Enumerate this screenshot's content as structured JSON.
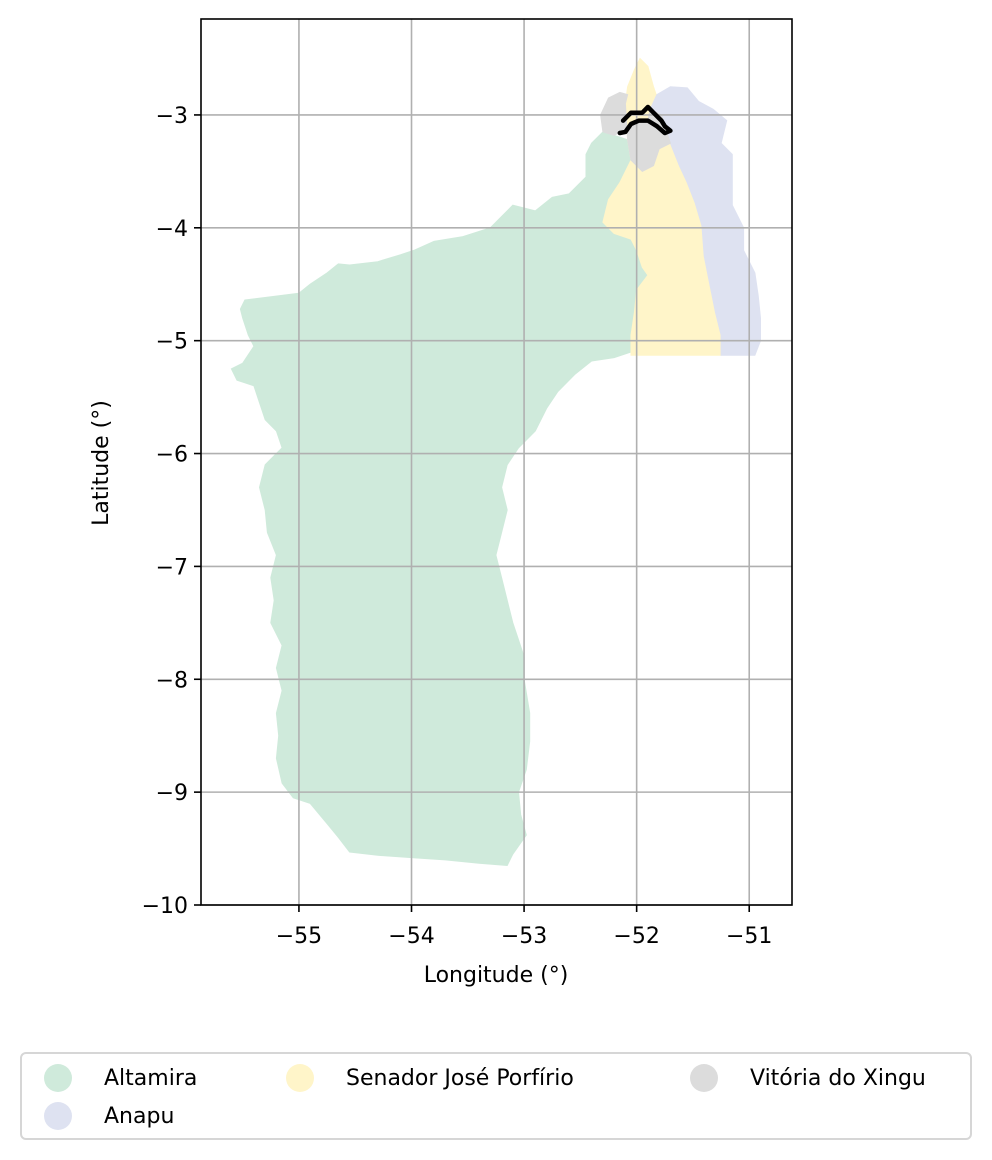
{
  "chart_data": {
    "type": "map",
    "xlabel": "Longitude (°)",
    "ylabel": "Latitude (°)",
    "xlim": [
      -55.87,
      -50.62
    ],
    "ylim": [
      -10.0,
      -2.15
    ],
    "x_ticks": [
      -55,
      -54,
      -53,
      -52,
      -51
    ],
    "x_tick_labels": [
      "−55",
      "−54",
      "−53",
      "−52",
      "−51"
    ],
    "y_ticks": [
      -3,
      -4,
      -5,
      -6,
      -7,
      -8,
      -9,
      -10
    ],
    "y_tick_labels": [
      "−3",
      "−4",
      "−5",
      "−6",
      "−7",
      "−8",
      "−9",
      "−10"
    ],
    "grid": true,
    "legend_position": "bottom",
    "regions": [
      {
        "name": "Altamira",
        "color": "#cfeadb",
        "coords": [
          [
            -55.48,
            -4.64
          ],
          [
            -55.0,
            -4.58
          ],
          [
            -54.9,
            -4.5
          ],
          [
            -54.75,
            -4.4
          ],
          [
            -54.65,
            -4.32
          ],
          [
            -54.55,
            -4.33
          ],
          [
            -54.3,
            -4.3
          ],
          [
            -54.1,
            -4.24
          ],
          [
            -53.98,
            -4.2
          ],
          [
            -53.8,
            -4.12
          ],
          [
            -53.55,
            -4.08
          ],
          [
            -53.3,
            -4.0
          ],
          [
            -53.2,
            -3.9
          ],
          [
            -53.1,
            -3.8
          ],
          [
            -52.9,
            -3.85
          ],
          [
            -52.75,
            -3.73
          ],
          [
            -52.6,
            -3.7
          ],
          [
            -52.45,
            -3.55
          ],
          [
            -52.45,
            -3.35
          ],
          [
            -52.4,
            -3.25
          ],
          [
            -52.3,
            -3.15
          ],
          [
            -52.2,
            -3.18
          ],
          [
            -52.08,
            -3.22
          ],
          [
            -52.05,
            -3.4
          ],
          [
            -52.15,
            -3.6
          ],
          [
            -52.25,
            -3.75
          ],
          [
            -52.3,
            -3.95
          ],
          [
            -52.2,
            -4.05
          ],
          [
            -52.05,
            -4.1
          ],
          [
            -52.0,
            -4.2
          ],
          [
            -51.95,
            -4.35
          ],
          [
            -51.9,
            -4.42
          ],
          [
            -52.0,
            -4.55
          ],
          [
            -52.0,
            -4.75
          ],
          [
            -52.02,
            -4.95
          ],
          [
            -52.05,
            -5.1
          ],
          [
            -52.2,
            -5.15
          ],
          [
            -52.4,
            -5.18
          ],
          [
            -52.55,
            -5.3
          ],
          [
            -52.7,
            -5.45
          ],
          [
            -52.8,
            -5.6
          ],
          [
            -52.9,
            -5.8
          ],
          [
            -53.05,
            -5.95
          ],
          [
            -53.15,
            -6.1
          ],
          [
            -53.2,
            -6.3
          ],
          [
            -53.15,
            -6.5
          ],
          [
            -53.2,
            -6.7
          ],
          [
            -53.25,
            -6.9
          ],
          [
            -53.2,
            -7.1
          ],
          [
            -53.15,
            -7.3
          ],
          [
            -53.1,
            -7.5
          ],
          [
            -53.05,
            -7.65
          ],
          [
            -53.0,
            -7.8
          ],
          [
            -53.0,
            -8.0
          ],
          [
            -52.95,
            -8.3
          ],
          [
            -52.95,
            -8.55
          ],
          [
            -52.98,
            -8.8
          ],
          [
            -53.05,
            -9.0
          ],
          [
            -53.03,
            -9.2
          ],
          [
            -52.98,
            -9.38
          ],
          [
            -53.1,
            -9.55
          ],
          [
            -53.15,
            -9.65
          ],
          [
            -53.4,
            -9.63
          ],
          [
            -53.7,
            -9.6
          ],
          [
            -54.0,
            -9.58
          ],
          [
            -54.3,
            -9.56
          ],
          [
            -54.55,
            -9.53
          ],
          [
            -54.65,
            -9.4
          ],
          [
            -54.75,
            -9.28
          ],
          [
            -54.9,
            -9.1
          ],
          [
            -55.05,
            -9.05
          ],
          [
            -55.15,
            -8.92
          ],
          [
            -55.2,
            -8.7
          ],
          [
            -55.18,
            -8.5
          ],
          [
            -55.2,
            -8.3
          ],
          [
            -55.15,
            -8.1
          ],
          [
            -55.2,
            -7.9
          ],
          [
            -55.15,
            -7.7
          ],
          [
            -55.25,
            -7.5
          ],
          [
            -55.22,
            -7.3
          ],
          [
            -55.25,
            -7.1
          ],
          [
            -55.2,
            -6.9
          ],
          [
            -55.28,
            -6.7
          ],
          [
            -55.3,
            -6.5
          ],
          [
            -55.35,
            -6.3
          ],
          [
            -55.3,
            -6.1
          ],
          [
            -55.2,
            -6.0
          ],
          [
            -55.15,
            -5.95
          ],
          [
            -55.2,
            -5.8
          ],
          [
            -55.3,
            -5.7
          ],
          [
            -55.35,
            -5.55
          ],
          [
            -55.4,
            -5.4
          ],
          [
            -55.55,
            -5.35
          ],
          [
            -55.6,
            -5.25
          ],
          [
            -55.5,
            -5.2
          ],
          [
            -55.4,
            -5.05
          ],
          [
            -55.45,
            -4.95
          ],
          [
            -55.5,
            -4.8
          ],
          [
            -55.52,
            -4.72
          ]
        ]
      },
      {
        "name": "Senador José Porfírio",
        "color": "#fff5c9",
        "coords": [
          [
            -52.1,
            -2.9
          ],
          [
            -52.08,
            -2.75
          ],
          [
            -52.02,
            -2.6
          ],
          [
            -51.97,
            -2.5
          ],
          [
            -51.9,
            -2.57
          ],
          [
            -51.85,
            -2.75
          ],
          [
            -51.8,
            -2.9
          ],
          [
            -51.78,
            -3.0
          ],
          [
            -51.7,
            -3.25
          ],
          [
            -51.62,
            -3.45
          ],
          [
            -51.55,
            -3.6
          ],
          [
            -51.48,
            -3.78
          ],
          [
            -51.42,
            -3.98
          ],
          [
            -51.4,
            -4.25
          ],
          [
            -51.35,
            -4.5
          ],
          [
            -51.3,
            -4.75
          ],
          [
            -51.25,
            -4.95
          ],
          [
            -51.25,
            -5.13
          ],
          [
            -51.6,
            -5.13
          ],
          [
            -52.05,
            -5.13
          ],
          [
            -52.05,
            -4.95
          ],
          [
            -52.02,
            -4.75
          ],
          [
            -52.0,
            -4.55
          ],
          [
            -51.9,
            -4.42
          ],
          [
            -51.95,
            -4.35
          ],
          [
            -52.0,
            -4.2
          ],
          [
            -52.05,
            -4.1
          ],
          [
            -52.2,
            -4.05
          ],
          [
            -52.3,
            -3.95
          ],
          [
            -52.25,
            -3.75
          ],
          [
            -52.15,
            -3.6
          ],
          [
            -52.05,
            -3.4
          ],
          [
            -52.08,
            -3.22
          ]
        ]
      },
      {
        "name": "Anapu",
        "color": "#dee2f1",
        "coords": [
          [
            -51.88,
            -2.95
          ],
          [
            -51.82,
            -2.82
          ],
          [
            -51.7,
            -2.75
          ],
          [
            -51.55,
            -2.76
          ],
          [
            -51.45,
            -2.88
          ],
          [
            -51.32,
            -2.95
          ],
          [
            -51.2,
            -3.05
          ],
          [
            -51.25,
            -3.25
          ],
          [
            -51.15,
            -3.35
          ],
          [
            -51.15,
            -3.55
          ],
          [
            -51.15,
            -3.8
          ],
          [
            -51.05,
            -4.0
          ],
          [
            -51.05,
            -4.2
          ],
          [
            -50.95,
            -4.4
          ],
          [
            -50.92,
            -4.6
          ],
          [
            -50.9,
            -4.8
          ],
          [
            -50.9,
            -5.0
          ],
          [
            -50.95,
            -5.13
          ],
          [
            -51.25,
            -5.13
          ],
          [
            -51.25,
            -4.95
          ],
          [
            -51.3,
            -4.75
          ],
          [
            -51.35,
            -4.5
          ],
          [
            -51.4,
            -4.25
          ],
          [
            -51.42,
            -3.98
          ],
          [
            -51.48,
            -3.78
          ],
          [
            -51.55,
            -3.6
          ],
          [
            -51.62,
            -3.45
          ],
          [
            -51.7,
            -3.25
          ],
          [
            -51.78,
            -3.0
          ]
        ]
      },
      {
        "name": "Vitória do Xingu",
        "color": "#dcdcdc",
        "coords": [
          [
            -52.3,
            -3.15
          ],
          [
            -52.32,
            -3.0
          ],
          [
            -52.25,
            -2.85
          ],
          [
            -52.15,
            -2.8
          ],
          [
            -52.08,
            -2.82
          ],
          [
            -52.1,
            -2.9
          ],
          [
            -52.08,
            -3.22
          ],
          [
            -52.05,
            -3.4
          ],
          [
            -51.95,
            -3.5
          ],
          [
            -51.85,
            -3.45
          ],
          [
            -51.8,
            -3.3
          ],
          [
            -51.7,
            -3.25
          ],
          [
            -51.78,
            -3.0
          ],
          [
            -51.88,
            -2.95
          ],
          [
            -51.9,
            -3.05
          ],
          [
            -52.05,
            -3.1
          ],
          [
            -52.2,
            -3.18
          ]
        ]
      }
    ],
    "highlight_outline": {
      "color": "#000000",
      "coords": [
        [
          -52.12,
          -3.05
        ],
        [
          -52.05,
          -2.98
        ],
        [
          -51.95,
          -2.98
        ],
        [
          -51.9,
          -2.93
        ],
        [
          -51.85,
          -2.98
        ],
        [
          -51.78,
          -3.05
        ],
        [
          -51.75,
          -3.1
        ],
        [
          -51.7,
          -3.14
        ],
        [
          -51.75,
          -3.16
        ],
        [
          -51.82,
          -3.1
        ],
        [
          -51.9,
          -3.05
        ],
        [
          -51.98,
          -3.05
        ],
        [
          -52.05,
          -3.08
        ],
        [
          -52.1,
          -3.15
        ],
        [
          -52.15,
          -3.16
        ]
      ]
    }
  },
  "legend": {
    "items": [
      {
        "label": "Altamira",
        "color": "#cfeadb"
      },
      {
        "label": "Senador José Porfírio",
        "color": "#fff5c9"
      },
      {
        "label": "Vitória do Xingu",
        "color": "#dcdcdc"
      },
      {
        "label": "Anapu",
        "color": "#dee2f1"
      }
    ]
  }
}
